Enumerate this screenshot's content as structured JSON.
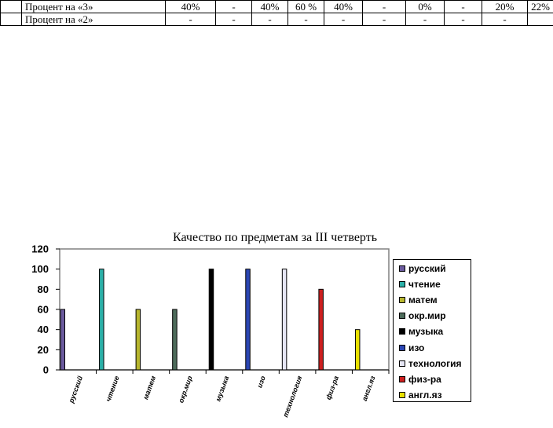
{
  "table": {
    "rows": [
      {
        "label": "Процент на «3»",
        "values": [
          "40%",
          "-",
          "40%",
          "60 %",
          "40%",
          "-",
          "0%",
          "-",
          "20%",
          "22%"
        ]
      },
      {
        "label": "Процент на «2»",
        "values": [
          "-",
          "-",
          "-",
          "-",
          "-",
          "-",
          "-",
          "-",
          "-",
          ""
        ]
      }
    ]
  },
  "chart_data": {
    "type": "bar",
    "title": "Качество по предметам за III четверть",
    "categories": [
      "русский",
      "чтение",
      "матем",
      "окр.мир",
      "музыка",
      "изо",
      "технология",
      "физ-ра",
      "англ.яз"
    ],
    "values": [
      60,
      100,
      60,
      60,
      100,
      100,
      100,
      80,
      40
    ],
    "colors": [
      "#6b5a9e",
      "#2bb0a8",
      "#b7b62e",
      "#4d6b5a",
      "#000000",
      "#2b46b3",
      "#e6e6f5",
      "#cc1f1f",
      "#e8e000"
    ],
    "ylim": [
      0,
      120
    ],
    "yticks": [
      0,
      20,
      40,
      60,
      80,
      100,
      120
    ],
    "grid": false,
    "legend": {
      "position": "right",
      "entries": [
        "русский",
        "чтение",
        "матем",
        "окр.мир",
        "музыка",
        "изо",
        "технология",
        "физ-ра",
        "англ.яз"
      ]
    }
  }
}
